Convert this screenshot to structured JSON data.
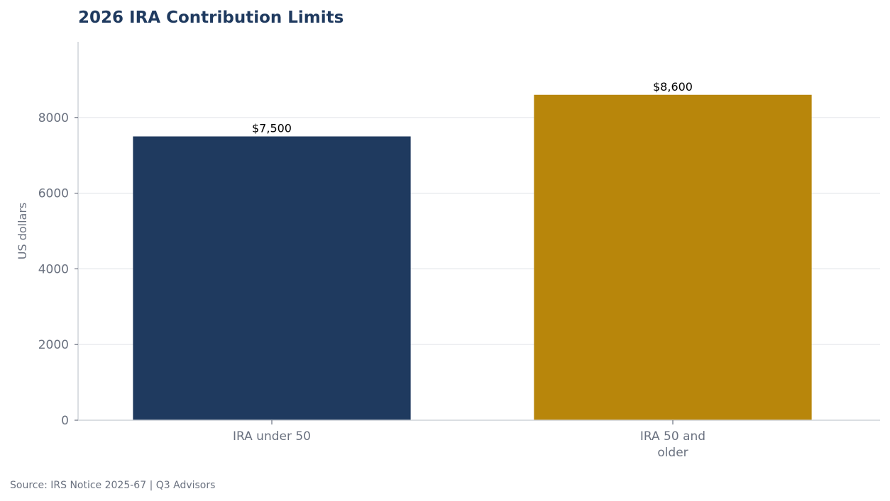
{
  "chart_data": {
    "type": "bar",
    "title": "2026 IRA Contribution Limits",
    "ylabel": "US dollars",
    "xlabel": "",
    "categories": [
      [
        "IRA under 50"
      ],
      [
        "IRA 50 and",
        "older"
      ]
    ],
    "values": [
      7500,
      8600
    ],
    "data_labels": [
      "$7,500",
      "$8,600"
    ],
    "bar_colors": [
      "#1f3a5f",
      "#b8860b"
    ],
    "ylim": [
      0,
      10000
    ],
    "yticks": [
      0,
      2000,
      4000,
      6000,
      8000
    ],
    "grid": true,
    "legend": "none"
  },
  "source": "Source: IRS Notice 2025-67  |  Q3 Advisors"
}
